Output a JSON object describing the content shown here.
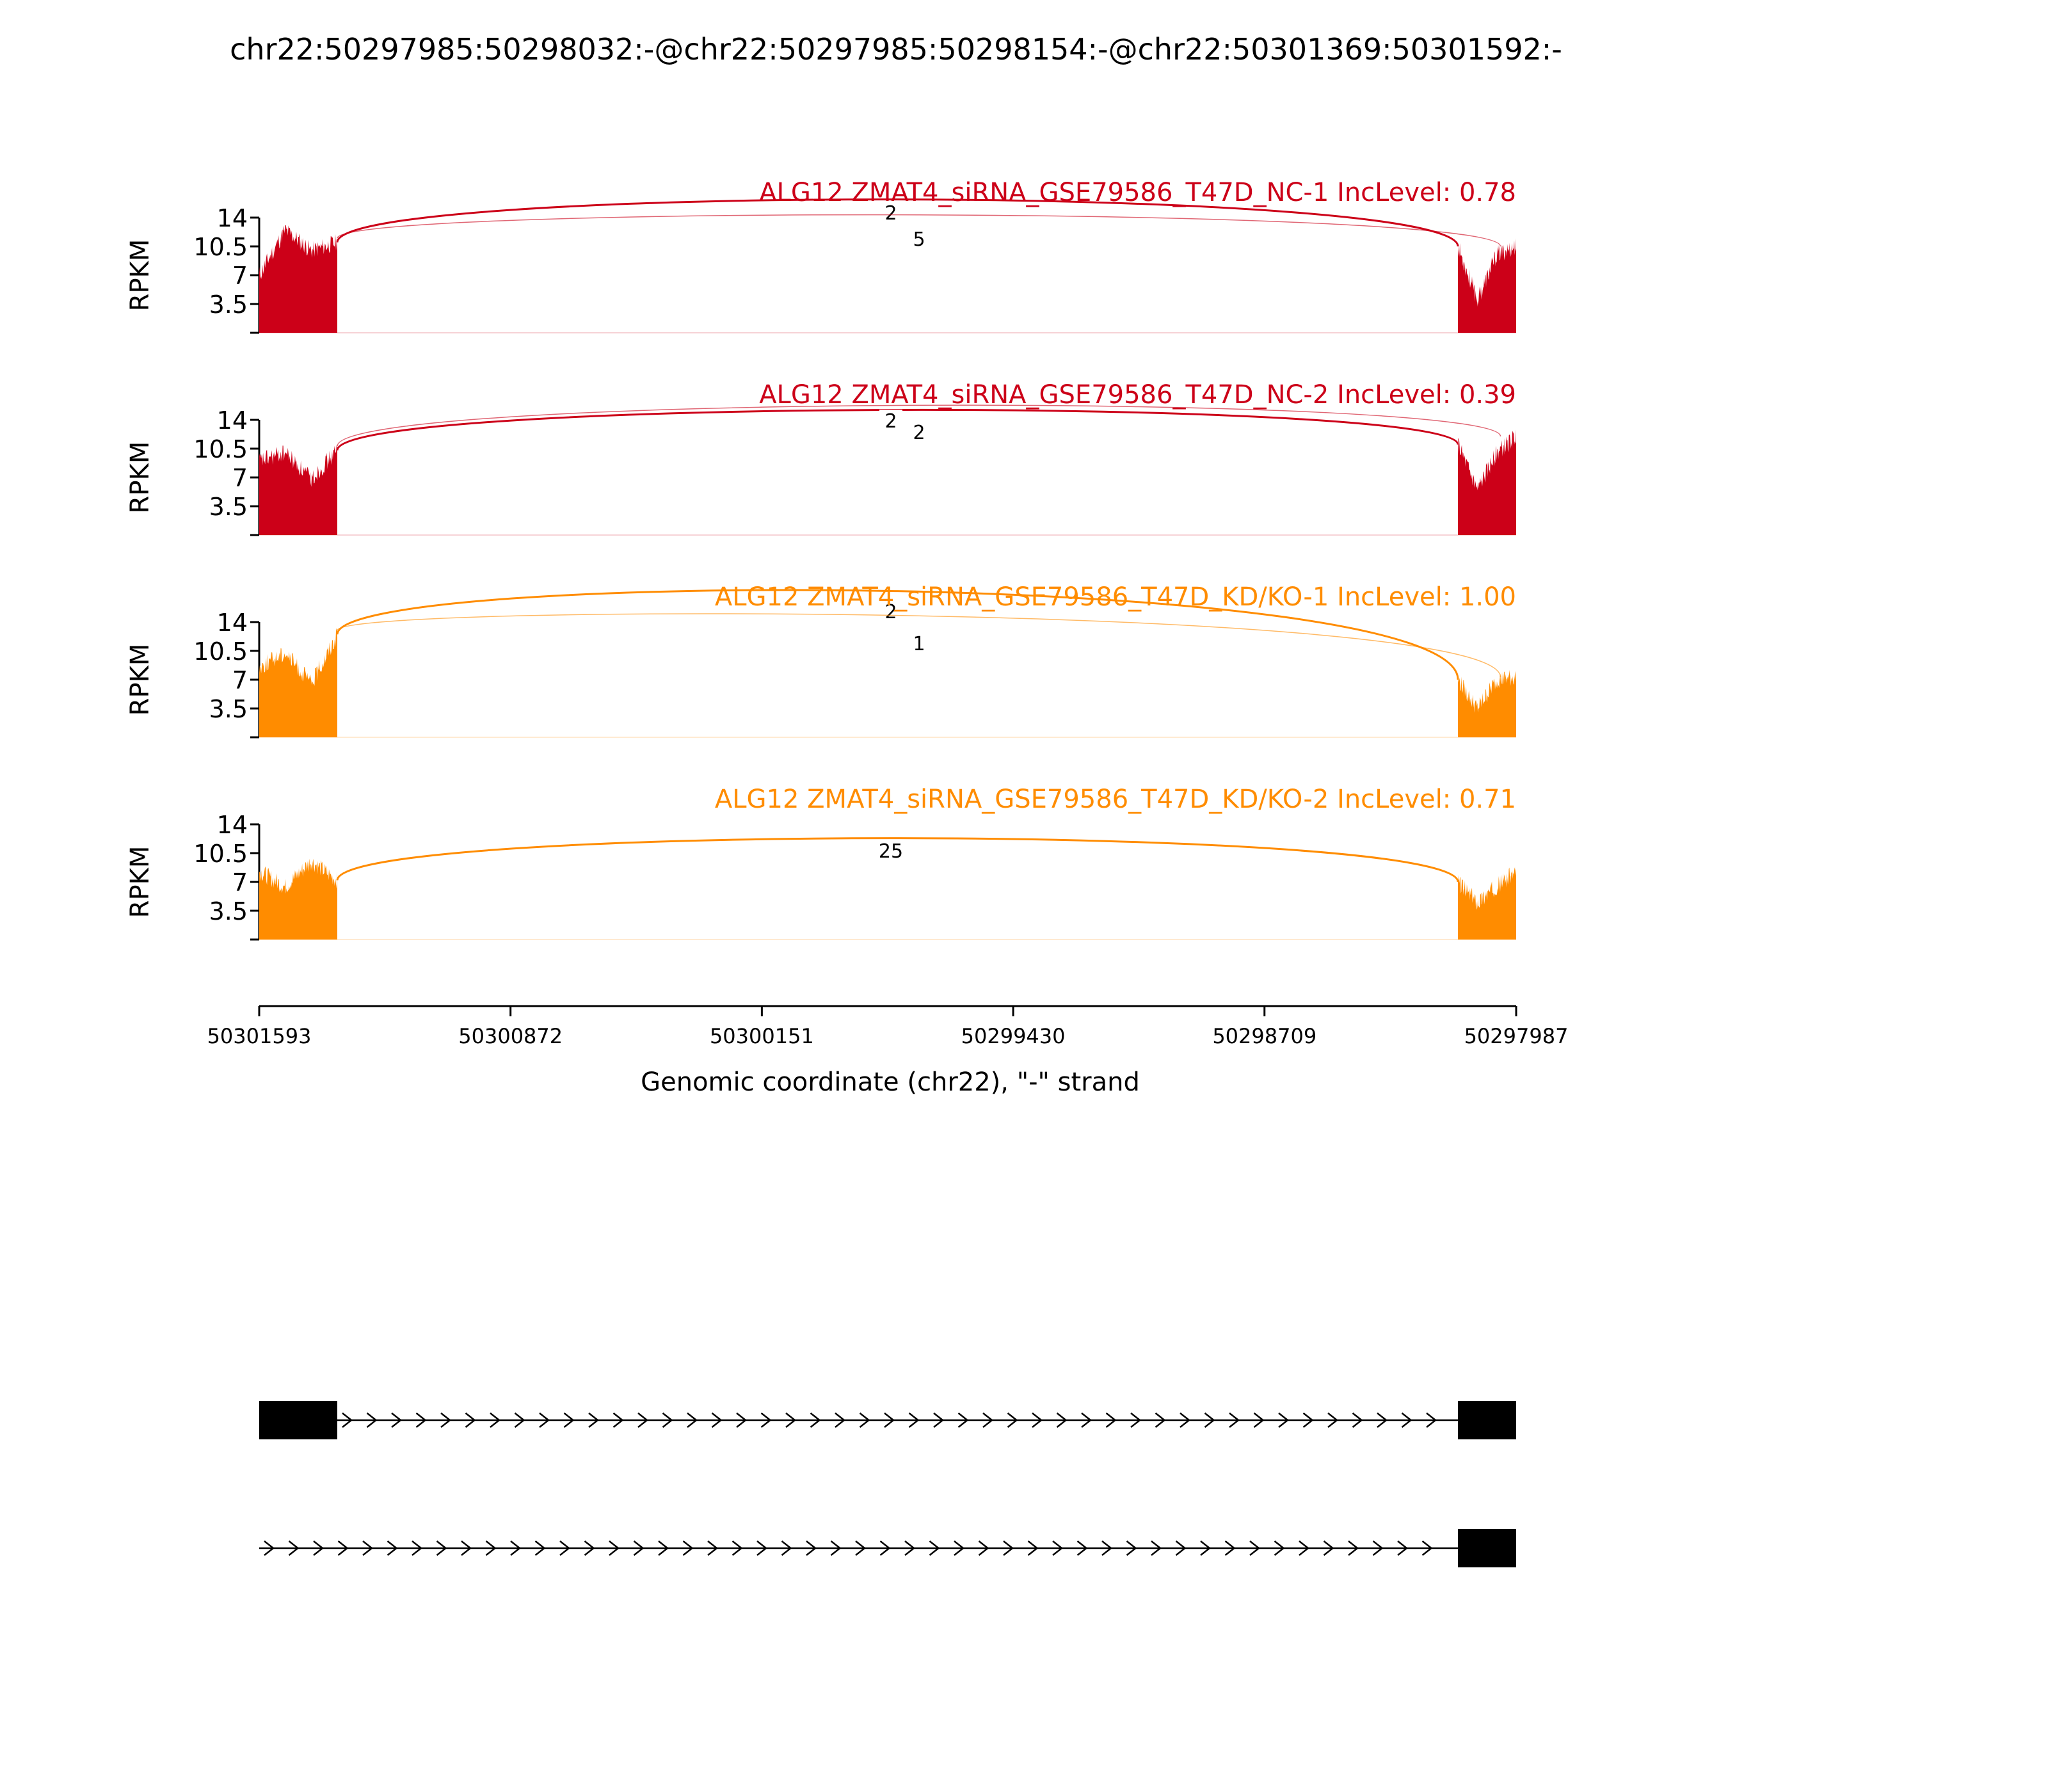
{
  "chart_data": {
    "type": "area",
    "title": "chr22:50297985:50298032:-@chr22:50297985:50298154:-@chr22:50301369:50301592:-",
    "colors": {
      "nc": "#cc0018",
      "kd": "#ff8c00",
      "axis": "#000000",
      "gene": "#000000"
    },
    "ylabel": "RPKM",
    "ylim": [
      0,
      14
    ],
    "yticks": [
      "14",
      "10.5",
      "7",
      "3.5"
    ],
    "xlabel": "Genomic coordinate (chr22), \"-\" strand",
    "xlim": [
      50301593,
      50297987
    ],
    "xticks": [
      "50301593",
      "50300872",
      "50300151",
      "50299430",
      "50298709",
      "50297987"
    ],
    "grid": false,
    "series": [
      {
        "name": "ALG12 ZMAT4_siRNA_GSE79586_T47D_NC-1 IncLevel: 0.78",
        "group": "nc",
        "exon_left_ends": [
          50301593,
          50301369
        ],
        "exon_right_ends": [
          50298154,
          50297987
        ],
        "junctions": [
          {
            "label": "2",
            "from": 50301369,
            "to": 50298154
          },
          {
            "label": "5",
            "from": 50301369,
            "to": 50298032
          }
        ]
      },
      {
        "name": "ALG12 ZMAT4_siRNA_GSE79586_T47D_NC-2 IncLevel: 0.39",
        "group": "nc",
        "exon_left_ends": [
          50301593,
          50301369
        ],
        "exon_right_ends": [
          50298154,
          50297987
        ],
        "junctions": [
          {
            "label": "2",
            "from": 50301369,
            "to": 50298154
          },
          {
            "label": "2",
            "from": 50301369,
            "to": 50298032
          }
        ]
      },
      {
        "name": "ALG12 ZMAT4_siRNA_GSE79586_T47D_KD/KO-1 IncLevel: 1.00",
        "group": "kd",
        "exon_left_ends": [
          50301593,
          50301369
        ],
        "exon_right_ends": [
          50298154,
          50297987
        ],
        "junctions": [
          {
            "label": "2",
            "from": 50301369,
            "to": 50298154
          },
          {
            "label": "1",
            "from": 50301369,
            "to": 50298032
          }
        ]
      },
      {
        "name": "ALG12 ZMAT4_siRNA_GSE79586_T47D_KD/KO-2 IncLevel: 0.71",
        "group": "kd",
        "exon_left_ends": [
          50301593,
          50301369
        ],
        "exon_right_ends": [
          50298154,
          50297987
        ],
        "junctions": [
          {
            "label": "25",
            "from": 50301369,
            "to": 50298154
          }
        ]
      }
    ],
    "isoforms": [
      {
        "exons": [
          [
            50301593,
            50301369
          ],
          [
            50298154,
            50297987
          ]
        ]
      },
      {
        "exons": [
          [
            50298154,
            50297987
          ]
        ]
      }
    ]
  }
}
